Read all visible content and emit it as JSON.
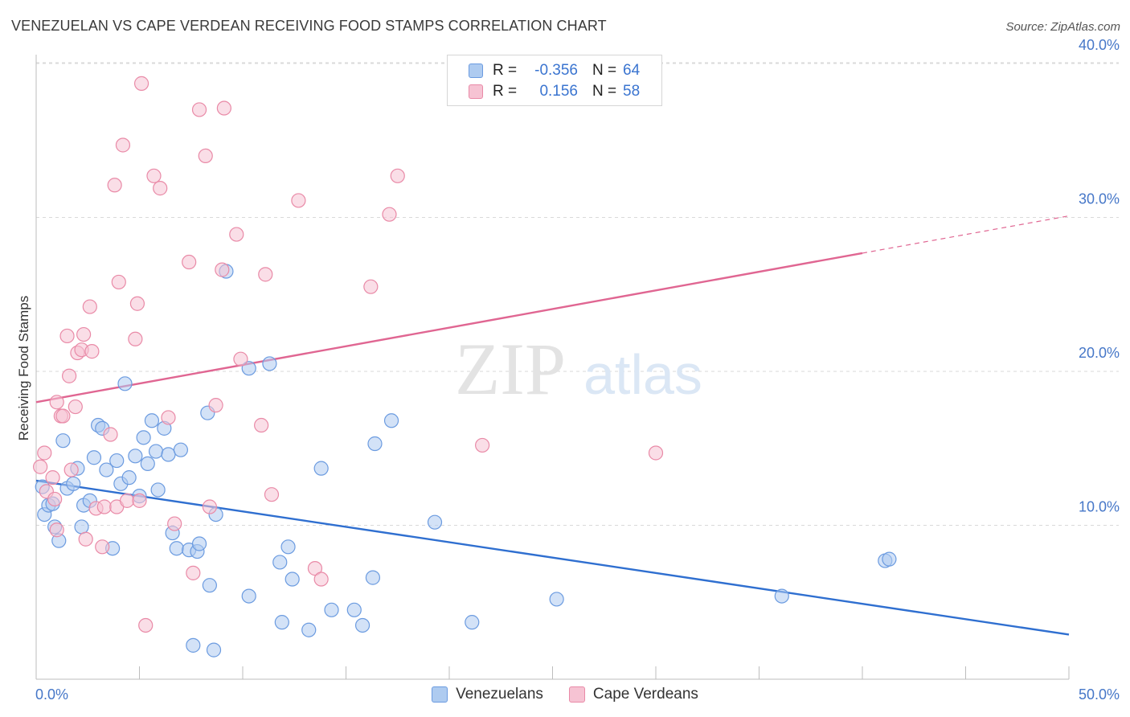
{
  "header": {
    "title": "VENEZUELAN VS CAPE VERDEAN RECEIVING FOOD STAMPS CORRELATION CHART",
    "source": "Source: ZipAtlas.com"
  },
  "watermark": {
    "zip": "ZIP",
    "atlas": "atlas"
  },
  "legend": {
    "r_label": "R =",
    "n_label": "N =",
    "rows": [
      {
        "series": "Venezuelans",
        "r": "-0.356",
        "n": "64"
      },
      {
        "series": "Cape Verdeans",
        "r": "0.156",
        "n": "58"
      }
    ]
  },
  "colors": {
    "blue_fill": "#aecbf0",
    "blue_stroke": "#6b9be0",
    "blue_line": "#2f6fd0",
    "pink_fill": "#f6c3d3",
    "pink_stroke": "#e98aa7",
    "pink_line": "#e06692",
    "axis_text": "#4677c8",
    "grid": "#d9d9d9"
  },
  "chart_data": {
    "type": "scatter",
    "title": "VENEZUELAN VS CAPE VERDEAN RECEIVING FOOD STAMPS CORRELATION CHART",
    "xlabel": "",
    "ylabel": "Receiving Food Stamps",
    "xlim": [
      0,
      50
    ],
    "ylim": [
      0,
      40
    ],
    "x_tick_labels": [
      "0.0%",
      "50.0%"
    ],
    "y_ticks": [
      10,
      20,
      30,
      40
    ],
    "y_tick_labels": [
      "10.0%",
      "20.0%",
      "30.0%",
      "40.0%"
    ],
    "grid": true,
    "legend_position": "top-center",
    "series": [
      {
        "name": "Venezuelans",
        "r": -0.356,
        "n": 64,
        "trend": {
          "x": [
            0,
            50
          ],
          "y": [
            12.9,
            2.9
          ]
        },
        "points": [
          [
            0.3,
            12.5
          ],
          [
            0.4,
            10.7
          ],
          [
            0.6,
            11.3
          ],
          [
            0.8,
            11.4
          ],
          [
            0.9,
            9.9
          ],
          [
            1.1,
            9.0
          ],
          [
            1.3,
            15.5
          ],
          [
            1.5,
            12.4
          ],
          [
            1.8,
            12.7
          ],
          [
            2.0,
            13.7
          ],
          [
            2.2,
            9.9
          ],
          [
            2.3,
            11.3
          ],
          [
            2.6,
            11.6
          ],
          [
            2.8,
            14.4
          ],
          [
            3.0,
            16.5
          ],
          [
            3.2,
            16.3
          ],
          [
            3.4,
            13.6
          ],
          [
            3.7,
            8.5
          ],
          [
            3.9,
            14.2
          ],
          [
            4.1,
            12.7
          ],
          [
            4.3,
            19.2
          ],
          [
            4.5,
            13.1
          ],
          [
            4.8,
            14.5
          ],
          [
            5.0,
            11.9
          ],
          [
            5.2,
            15.7
          ],
          [
            5.4,
            14.0
          ],
          [
            5.6,
            16.8
          ],
          [
            5.8,
            14.8
          ],
          [
            5.9,
            12.3
          ],
          [
            6.2,
            16.3
          ],
          [
            6.4,
            14.6
          ],
          [
            6.6,
            9.5
          ],
          [
            6.8,
            8.5
          ],
          [
            7.0,
            14.9
          ],
          [
            7.4,
            8.4
          ],
          [
            7.6,
            2.2
          ],
          [
            7.8,
            8.3
          ],
          [
            7.9,
            8.8
          ],
          [
            8.3,
            17.3
          ],
          [
            8.4,
            6.1
          ],
          [
            8.6,
            1.9
          ],
          [
            8.7,
            10.7
          ],
          [
            9.2,
            26.5
          ],
          [
            10.3,
            20.2
          ],
          [
            10.3,
            5.4
          ],
          [
            11.3,
            20.5
          ],
          [
            11.8,
            7.6
          ],
          [
            11.9,
            3.7
          ],
          [
            12.2,
            8.6
          ],
          [
            12.4,
            6.5
          ],
          [
            13.2,
            3.2
          ],
          [
            13.8,
            13.7
          ],
          [
            14.3,
            4.5
          ],
          [
            15.4,
            4.5
          ],
          [
            15.8,
            3.5
          ],
          [
            16.3,
            6.6
          ],
          [
            16.4,
            15.3
          ],
          [
            17.2,
            16.8
          ],
          [
            19.3,
            10.2
          ],
          [
            21.1,
            3.7
          ],
          [
            25.2,
            5.2
          ],
          [
            36.1,
            5.4
          ],
          [
            41.1,
            7.7
          ],
          [
            41.3,
            7.8
          ]
        ]
      },
      {
        "name": "Cape Verdeans",
        "r": 0.156,
        "n": 58,
        "trend": {
          "x": [
            0,
            50
          ],
          "y": [
            18.0,
            30.1
          ]
        },
        "points": [
          [
            0.2,
            13.8
          ],
          [
            0.4,
            14.7
          ],
          [
            0.5,
            12.2
          ],
          [
            0.8,
            13.1
          ],
          [
            0.9,
            11.7
          ],
          [
            1.0,
            18.0
          ],
          [
            1.0,
            9.7
          ],
          [
            1.2,
            17.1
          ],
          [
            1.3,
            17.1
          ],
          [
            1.5,
            22.3
          ],
          [
            1.6,
            19.7
          ],
          [
            1.7,
            13.6
          ],
          [
            1.9,
            17.7
          ],
          [
            2.0,
            21.2
          ],
          [
            2.2,
            21.4
          ],
          [
            2.3,
            22.4
          ],
          [
            2.4,
            9.1
          ],
          [
            2.6,
            24.2
          ],
          [
            2.7,
            21.3
          ],
          [
            2.9,
            11.1
          ],
          [
            3.2,
            8.6
          ],
          [
            3.3,
            11.2
          ],
          [
            3.6,
            15.9
          ],
          [
            3.8,
            32.1
          ],
          [
            3.9,
            11.2
          ],
          [
            4.0,
            25.8
          ],
          [
            4.2,
            34.7
          ],
          [
            4.4,
            11.6
          ],
          [
            4.8,
            22.1
          ],
          [
            4.9,
            24.4
          ],
          [
            5.0,
            11.6
          ],
          [
            5.1,
            38.7
          ],
          [
            5.3,
            3.5
          ],
          [
            5.7,
            32.7
          ],
          [
            6.0,
            31.9
          ],
          [
            6.4,
            17.0
          ],
          [
            6.7,
            10.1
          ],
          [
            7.4,
            27.1
          ],
          [
            7.6,
            6.9
          ],
          [
            7.9,
            37.0
          ],
          [
            8.2,
            34.0
          ],
          [
            8.4,
            11.2
          ],
          [
            8.7,
            17.8
          ],
          [
            9.0,
            26.6
          ],
          [
            9.1,
            37.1
          ],
          [
            9.7,
            28.9
          ],
          [
            9.9,
            20.8
          ],
          [
            10.9,
            16.5
          ],
          [
            11.1,
            26.3
          ],
          [
            11.4,
            12.0
          ],
          [
            12.7,
            31.1
          ],
          [
            13.5,
            7.2
          ],
          [
            13.8,
            6.5
          ],
          [
            16.2,
            25.5
          ],
          [
            17.1,
            30.2
          ],
          [
            17.5,
            32.7
          ],
          [
            21.6,
            15.2
          ],
          [
            30.0,
            14.7
          ]
        ]
      }
    ]
  }
}
